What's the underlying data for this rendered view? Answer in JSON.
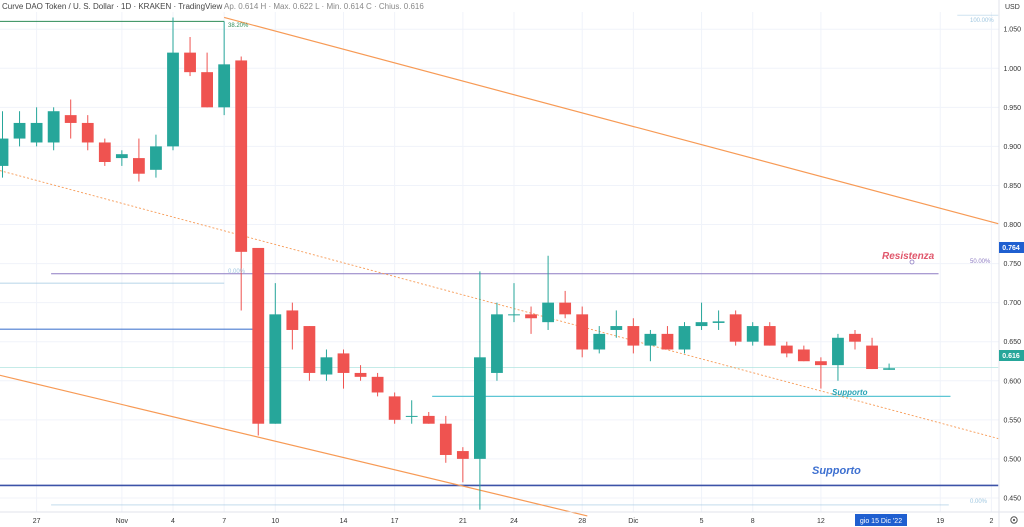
{
  "header": {
    "title": "Curve DAO Token / U. S. Dollar · 1D · KRAKEN · TradingView",
    "ohlc": "Ap. 0.614  H · Max. 0.622  L · Min. 0.614  C · Chius. 0.616"
  },
  "chart_data": {
    "type": "candlestick",
    "currency": "USD",
    "ylim": [
      0.432,
      1.072
    ],
    "y_ticks": [
      1.05,
      1.0,
      0.95,
      0.9,
      0.85,
      0.8,
      0.75,
      0.7,
      0.65,
      0.6,
      0.55,
      0.5,
      0.45
    ],
    "x_ticks": [
      {
        "label": "27",
        "i": 2
      },
      {
        "label": "Nov",
        "i": 7
      },
      {
        "label": "4",
        "i": 10
      },
      {
        "label": "7",
        "i": 13
      },
      {
        "label": "10",
        "i": 16
      },
      {
        "label": "14",
        "i": 20
      },
      {
        "label": "17",
        "i": 23
      },
      {
        "label": "21",
        "i": 27
      },
      {
        "label": "24",
        "i": 30
      },
      {
        "label": "28",
        "i": 34
      },
      {
        "label": "Dic",
        "i": 37
      },
      {
        "label": "5",
        "i": 41
      },
      {
        "label": "8",
        "i": 44
      },
      {
        "label": "12",
        "i": 48
      },
      {
        "label": "19",
        "i": 55
      },
      {
        "label": "2",
        "i": 58
      }
    ],
    "candles": [
      {
        "o": 0.875,
        "h": 0.945,
        "l": 0.86,
        "c": 0.91
      },
      {
        "o": 0.91,
        "h": 0.945,
        "l": 0.9,
        "c": 0.93
      },
      {
        "o": 0.905,
        "h": 0.95,
        "l": 0.9,
        "c": 0.93
      },
      {
        "o": 0.905,
        "h": 0.95,
        "l": 0.895,
        "c": 0.945
      },
      {
        "o": 0.94,
        "h": 0.96,
        "l": 0.91,
        "c": 0.93
      },
      {
        "o": 0.93,
        "h": 0.94,
        "l": 0.895,
        "c": 0.905
      },
      {
        "o": 0.905,
        "h": 0.91,
        "l": 0.875,
        "c": 0.88
      },
      {
        "o": 0.885,
        "h": 0.895,
        "l": 0.875,
        "c": 0.89
      },
      {
        "o": 0.885,
        "h": 0.91,
        "l": 0.855,
        "c": 0.865
      },
      {
        "o": 0.87,
        "h": 0.915,
        "l": 0.86,
        "c": 0.9
      },
      {
        "o": 0.9,
        "h": 1.065,
        "l": 0.895,
        "c": 1.02
      },
      {
        "o": 1.02,
        "h": 1.04,
        "l": 0.99,
        "c": 0.995
      },
      {
        "o": 0.995,
        "h": 1.02,
        "l": 0.95,
        "c": 0.95
      },
      {
        "o": 0.95,
        "h": 1.06,
        "l": 0.94,
        "c": 1.005
      },
      {
        "o": 1.01,
        "h": 1.015,
        "l": 0.69,
        "c": 0.765
      },
      {
        "o": 0.77,
        "h": 0.77,
        "l": 0.53,
        "c": 0.545
      },
      {
        "o": 0.545,
        "h": 0.725,
        "l": 0.545,
        "c": 0.685
      },
      {
        "o": 0.69,
        "h": 0.7,
        "l": 0.64,
        "c": 0.665
      },
      {
        "o": 0.67,
        "h": 0.67,
        "l": 0.6,
        "c": 0.61
      },
      {
        "o": 0.608,
        "h": 0.64,
        "l": 0.6,
        "c": 0.63
      },
      {
        "o": 0.635,
        "h": 0.64,
        "l": 0.59,
        "c": 0.61
      },
      {
        "o": 0.61,
        "h": 0.62,
        "l": 0.6,
        "c": 0.605
      },
      {
        "o": 0.605,
        "h": 0.61,
        "l": 0.58,
        "c": 0.585
      },
      {
        "o": 0.58,
        "h": 0.585,
        "l": 0.545,
        "c": 0.55
      },
      {
        "o": 0.555,
        "h": 0.575,
        "l": 0.545,
        "c": 0.555
      },
      {
        "o": 0.555,
        "h": 0.56,
        "l": 0.545,
        "c": 0.545
      },
      {
        "o": 0.545,
        "h": 0.555,
        "l": 0.495,
        "c": 0.505
      },
      {
        "o": 0.51,
        "h": 0.515,
        "l": 0.47,
        "c": 0.5
      },
      {
        "o": 0.5,
        "h": 0.74,
        "l": 0.435,
        "c": 0.63
      },
      {
        "o": 0.61,
        "h": 0.7,
        "l": 0.6,
        "c": 0.685
      },
      {
        "o": 0.685,
        "h": 0.725,
        "l": 0.675,
        "c": 0.685
      },
      {
        "o": 0.685,
        "h": 0.695,
        "l": 0.66,
        "c": 0.68
      },
      {
        "o": 0.675,
        "h": 0.76,
        "l": 0.665,
        "c": 0.7
      },
      {
        "o": 0.7,
        "h": 0.715,
        "l": 0.68,
        "c": 0.685
      },
      {
        "o": 0.685,
        "h": 0.695,
        "l": 0.63,
        "c": 0.64
      },
      {
        "o": 0.64,
        "h": 0.67,
        "l": 0.635,
        "c": 0.66
      },
      {
        "o": 0.665,
        "h": 0.69,
        "l": 0.655,
        "c": 0.67
      },
      {
        "o": 0.67,
        "h": 0.68,
        "l": 0.635,
        "c": 0.645
      },
      {
        "o": 0.645,
        "h": 0.665,
        "l": 0.625,
        "c": 0.66
      },
      {
        "o": 0.66,
        "h": 0.67,
        "l": 0.64,
        "c": 0.64
      },
      {
        "o": 0.64,
        "h": 0.675,
        "l": 0.635,
        "c": 0.67
      },
      {
        "o": 0.67,
        "h": 0.7,
        "l": 0.665,
        "c": 0.675
      },
      {
        "o": 0.674,
        "h": 0.69,
        "l": 0.665,
        "c": 0.676
      },
      {
        "o": 0.685,
        "h": 0.69,
        "l": 0.645,
        "c": 0.65
      },
      {
        "o": 0.65,
        "h": 0.675,
        "l": 0.645,
        "c": 0.67
      },
      {
        "o": 0.67,
        "h": 0.675,
        "l": 0.645,
        "c": 0.645
      },
      {
        "o": 0.645,
        "h": 0.65,
        "l": 0.63,
        "c": 0.635
      },
      {
        "o": 0.64,
        "h": 0.645,
        "l": 0.625,
        "c": 0.625
      },
      {
        "o": 0.625,
        "h": 0.63,
        "l": 0.59,
        "c": 0.62
      },
      {
        "o": 0.62,
        "h": 0.66,
        "l": 0.6,
        "c": 0.655
      },
      {
        "o": 0.66,
        "h": 0.665,
        "l": 0.64,
        "c": 0.65
      },
      {
        "o": 0.645,
        "h": 0.655,
        "l": 0.615,
        "c": 0.615
      },
      {
        "o": 0.614,
        "h": 0.622,
        "l": 0.614,
        "c": 0.616
      }
    ],
    "colors": {
      "up": "#26a69a",
      "down": "#ef5350",
      "trend": "#f79a55",
      "support": "#3c52a8",
      "support_light": "#5ec6d4",
      "resistance_line": "#8e7cc3",
      "horizontal_blue": "#4a7bd0",
      "fib_text": "#9fc7e0",
      "grid": "#f0f3fa",
      "axis_text": "#333333"
    },
    "annotations": {
      "fib_top": "100.00%",
      "fib_mid": "50.00%",
      "fib_bottom": "0.00%",
      "fib_382": "38.20%",
      "fib_mid_left": "0.00%",
      "resistance": "Resistenza",
      "support_upper": "Supporto",
      "support_lower": "Supporto"
    },
    "price_labels": {
      "upper": "0.764",
      "last": "0.616"
    },
    "date_label": "gio 15 Dic '22"
  }
}
